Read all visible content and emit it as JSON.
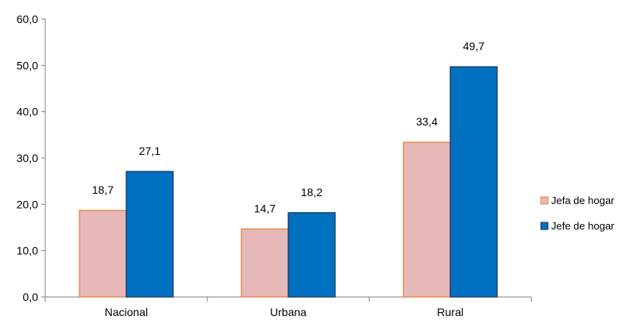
{
  "chart_data": {
    "type": "bar",
    "categories": [
      "Nacional",
      "Urbana",
      "Rural"
    ],
    "series": [
      {
        "name": "Jefa de hogar",
        "values": [
          18.7,
          14.7,
          33.4
        ],
        "color": "#e6b8b8",
        "stroke": "#e8823c"
      },
      {
        "name": "Jefe de hogar",
        "values": [
          27.1,
          18.2,
          49.7
        ],
        "color": "#0070c0",
        "stroke": "#1f3864"
      }
    ],
    "data_labels": [
      [
        "18,7",
        "14,7",
        "33,4"
      ],
      [
        "27,1",
        "18,2",
        "49,7"
      ]
    ],
    "ylim": [
      0,
      60
    ],
    "y_ticks": [
      0,
      10,
      20,
      30,
      40,
      50,
      60
    ],
    "y_tick_labels": [
      "0,0",
      "10,0",
      "20,0",
      "30,0",
      "40,0",
      "50,0",
      "60,0"
    ],
    "legend_position": "right",
    "grid": false,
    "title": "",
    "xlabel": "",
    "ylabel": ""
  }
}
